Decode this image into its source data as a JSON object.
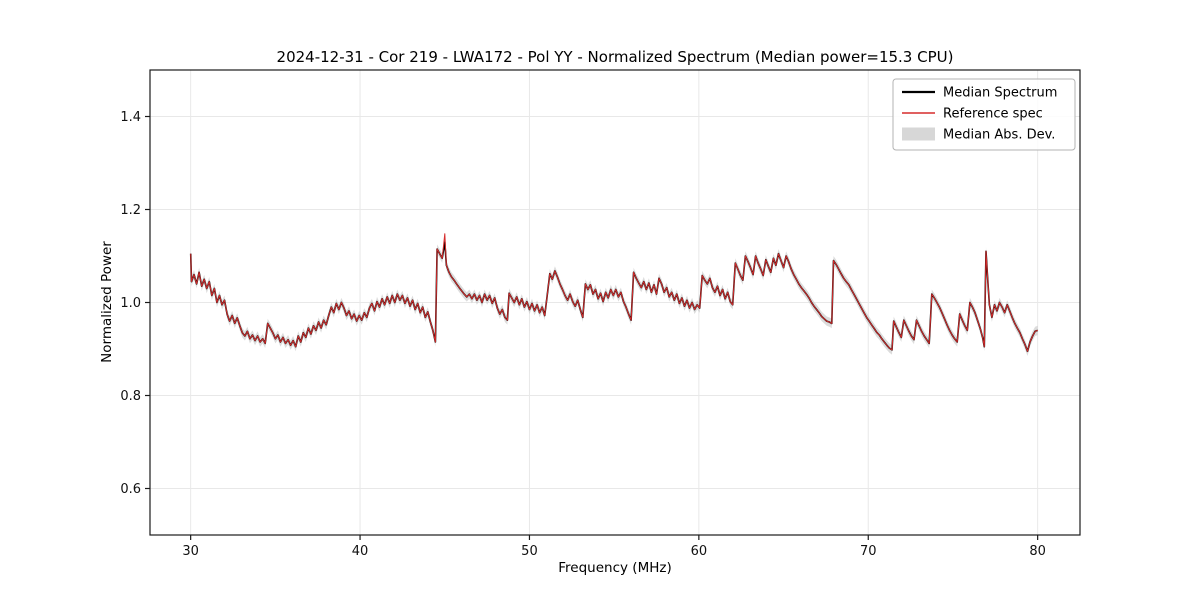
{
  "chart_data": {
    "type": "line",
    "title": "2024-12-31 - Cor 219 - LWA172 - Pol YY - Normalized Spectrum (Median power=15.3 CPU)",
    "xlabel": "Frequency (MHz)",
    "ylabel": "Normalized Power",
    "xlim": [
      27.6,
      82.5
    ],
    "ylim": [
      0.5,
      1.5
    ],
    "xticks": [
      30,
      40,
      50,
      60,
      70,
      80
    ],
    "yticks": [
      0.6,
      0.8,
      1.0,
      1.2,
      1.4
    ],
    "grid": true,
    "legend_position": "upper right",
    "colors": {
      "median_line": "#000000",
      "reference_line": "#d62c2c",
      "mad_band": "#c9c9c9",
      "grid_line": "#e8e8e8",
      "frame": "#1a1a1a"
    },
    "mad_band_halfwidth": 0.01,
    "reference_same_as_median": true,
    "reference_adjustments": [
      [
        45.0,
        1.148
      ]
    ],
    "median_points": [
      [
        30.0,
        1.105
      ],
      [
        30.05,
        1.045
      ],
      [
        30.2,
        1.06
      ],
      [
        30.35,
        1.04
      ],
      [
        30.5,
        1.065
      ],
      [
        30.65,
        1.035
      ],
      [
        30.8,
        1.05
      ],
      [
        30.95,
        1.03
      ],
      [
        31.1,
        1.045
      ],
      [
        31.25,
        1.015
      ],
      [
        31.4,
        1.03
      ],
      [
        31.55,
        1.0
      ],
      [
        31.7,
        1.015
      ],
      [
        31.85,
        0.995
      ],
      [
        32.0,
        1.005
      ],
      [
        32.15,
        0.975
      ],
      [
        32.3,
        0.96
      ],
      [
        32.45,
        0.972
      ],
      [
        32.6,
        0.955
      ],
      [
        32.75,
        0.967
      ],
      [
        32.9,
        0.95
      ],
      [
        33.05,
        0.935
      ],
      [
        33.2,
        0.928
      ],
      [
        33.35,
        0.938
      ],
      [
        33.5,
        0.922
      ],
      [
        33.65,
        0.93
      ],
      [
        33.8,
        0.918
      ],
      [
        33.95,
        0.928
      ],
      [
        34.1,
        0.915
      ],
      [
        34.25,
        0.922
      ],
      [
        34.4,
        0.912
      ],
      [
        34.55,
        0.955
      ],
      [
        34.7,
        0.945
      ],
      [
        34.85,
        0.935
      ],
      [
        35.0,
        0.922
      ],
      [
        35.15,
        0.93
      ],
      [
        35.3,
        0.915
      ],
      [
        35.45,
        0.925
      ],
      [
        35.6,
        0.912
      ],
      [
        35.75,
        0.92
      ],
      [
        35.9,
        0.908
      ],
      [
        36.05,
        0.918
      ],
      [
        36.2,
        0.905
      ],
      [
        36.35,
        0.928
      ],
      [
        36.5,
        0.915
      ],
      [
        36.65,
        0.935
      ],
      [
        36.8,
        0.925
      ],
      [
        36.95,
        0.945
      ],
      [
        37.1,
        0.932
      ],
      [
        37.25,
        0.95
      ],
      [
        37.4,
        0.94
      ],
      [
        37.55,
        0.958
      ],
      [
        37.7,
        0.945
      ],
      [
        37.85,
        0.962
      ],
      [
        38.0,
        0.952
      ],
      [
        38.15,
        0.972
      ],
      [
        38.3,
        0.99
      ],
      [
        38.45,
        0.978
      ],
      [
        38.6,
        0.998
      ],
      [
        38.75,
        0.985
      ],
      [
        38.9,
        1.0
      ],
      [
        39.05,
        0.988
      ],
      [
        39.2,
        0.972
      ],
      [
        39.35,
        0.982
      ],
      [
        39.5,
        0.965
      ],
      [
        39.65,
        0.975
      ],
      [
        39.8,
        0.96
      ],
      [
        39.95,
        0.972
      ],
      [
        40.1,
        0.962
      ],
      [
        40.25,
        0.978
      ],
      [
        40.4,
        0.968
      ],
      [
        40.55,
        0.988
      ],
      [
        40.7,
        0.998
      ],
      [
        40.85,
        0.982
      ],
      [
        41.0,
        1.002
      ],
      [
        41.15,
        0.99
      ],
      [
        41.3,
        1.008
      ],
      [
        41.45,
        0.995
      ],
      [
        41.6,
        1.012
      ],
      [
        41.75,
        0.998
      ],
      [
        41.9,
        1.015
      ],
      [
        42.05,
        1.0
      ],
      [
        42.2,
        1.018
      ],
      [
        42.35,
        1.005
      ],
      [
        42.5,
        1.015
      ],
      [
        42.65,
        0.998
      ],
      [
        42.8,
        1.01
      ],
      [
        42.95,
        0.992
      ],
      [
        43.1,
        1.005
      ],
      [
        43.25,
        0.985
      ],
      [
        43.4,
        0.998
      ],
      [
        43.55,
        0.978
      ],
      [
        43.7,
        0.99
      ],
      [
        43.85,
        0.968
      ],
      [
        44.0,
        0.98
      ],
      [
        44.15,
        0.958
      ],
      [
        44.3,
        0.94
      ],
      [
        44.45,
        0.915
      ],
      [
        44.55,
        1.115
      ],
      [
        44.7,
        1.105
      ],
      [
        44.85,
        1.095
      ],
      [
        45.0,
        1.13
      ],
      [
        45.1,
        1.08
      ],
      [
        45.25,
        1.065
      ],
      [
        45.4,
        1.055
      ],
      [
        45.55,
        1.048
      ],
      [
        45.7,
        1.04
      ],
      [
        45.85,
        1.032
      ],
      [
        46.0,
        1.025
      ],
      [
        46.15,
        1.018
      ],
      [
        46.3,
        1.012
      ],
      [
        46.45,
        1.018
      ],
      [
        46.6,
        1.008
      ],
      [
        46.75,
        1.018
      ],
      [
        46.9,
        1.005
      ],
      [
        47.05,
        1.015
      ],
      [
        47.2,
        1.0
      ],
      [
        47.35,
        1.018
      ],
      [
        47.5,
        1.005
      ],
      [
        47.65,
        1.015
      ],
      [
        47.8,
        0.998
      ],
      [
        47.95,
        1.01
      ],
      [
        48.1,
        0.988
      ],
      [
        48.25,
        0.975
      ],
      [
        48.4,
        0.985
      ],
      [
        48.55,
        0.968
      ],
      [
        48.7,
        0.962
      ],
      [
        48.8,
        1.02
      ],
      [
        48.95,
        1.01
      ],
      [
        49.1,
        1.0
      ],
      [
        49.25,
        1.012
      ],
      [
        49.4,
        0.995
      ],
      [
        49.55,
        1.008
      ],
      [
        49.7,
        0.99
      ],
      [
        49.85,
        1.002
      ],
      [
        50.0,
        0.985
      ],
      [
        50.15,
        0.998
      ],
      [
        50.3,
        0.982
      ],
      [
        50.45,
        0.995
      ],
      [
        50.6,
        0.978
      ],
      [
        50.75,
        0.99
      ],
      [
        50.9,
        0.972
      ],
      [
        51.05,
        1.015
      ],
      [
        51.2,
        1.062
      ],
      [
        51.35,
        1.05
      ],
      [
        51.5,
        1.068
      ],
      [
        51.65,
        1.055
      ],
      [
        51.8,
        1.04
      ],
      [
        51.95,
        1.028
      ],
      [
        52.1,
        1.015
      ],
      [
        52.25,
        1.005
      ],
      [
        52.4,
        1.018
      ],
      [
        52.55,
        1.002
      ],
      [
        52.7,
        0.992
      ],
      [
        52.85,
        1.005
      ],
      [
        53.0,
        0.985
      ],
      [
        53.15,
        0.968
      ],
      [
        53.3,
        1.04
      ],
      [
        53.45,
        1.028
      ],
      [
        53.6,
        1.038
      ],
      [
        53.75,
        1.018
      ],
      [
        53.9,
        1.028
      ],
      [
        54.05,
        1.008
      ],
      [
        54.2,
        1.02
      ],
      [
        54.35,
        1.002
      ],
      [
        54.5,
        1.022
      ],
      [
        54.65,
        1.01
      ],
      [
        54.8,
        1.028
      ],
      [
        54.95,
        1.015
      ],
      [
        55.1,
        1.028
      ],
      [
        55.25,
        1.012
      ],
      [
        55.4,
        1.022
      ],
      [
        55.55,
        1.002
      ],
      [
        55.7,
        0.99
      ],
      [
        55.85,
        0.975
      ],
      [
        56.0,
        0.962
      ],
      [
        56.15,
        1.065
      ],
      [
        56.3,
        1.052
      ],
      [
        56.45,
        1.042
      ],
      [
        56.6,
        1.032
      ],
      [
        56.75,
        1.045
      ],
      [
        56.9,
        1.028
      ],
      [
        57.05,
        1.042
      ],
      [
        57.2,
        1.022
      ],
      [
        57.35,
        1.038
      ],
      [
        57.5,
        1.018
      ],
      [
        57.65,
        1.052
      ],
      [
        57.8,
        1.04
      ],
      [
        57.95,
        1.022
      ],
      [
        58.1,
        1.032
      ],
      [
        58.25,
        1.012
      ],
      [
        58.4,
        1.022
      ],
      [
        58.55,
        1.005
      ],
      [
        58.7,
        1.018
      ],
      [
        58.85,
        0.998
      ],
      [
        59.0,
        1.01
      ],
      [
        59.15,
        0.992
      ],
      [
        59.3,
        1.005
      ],
      [
        59.45,
        0.988
      ],
      [
        59.6,
        1.0
      ],
      [
        59.75,
        0.985
      ],
      [
        59.9,
        0.995
      ],
      [
        60.05,
        0.988
      ],
      [
        60.2,
        1.058
      ],
      [
        60.35,
        1.048
      ],
      [
        60.5,
        1.04
      ],
      [
        60.65,
        1.052
      ],
      [
        60.8,
        1.032
      ],
      [
        60.95,
        1.022
      ],
      [
        61.1,
        1.035
      ],
      [
        61.25,
        1.015
      ],
      [
        61.4,
        1.028
      ],
      [
        61.55,
        1.008
      ],
      [
        61.7,
        1.022
      ],
      [
        61.85,
        1.002
      ],
      [
        62.0,
        0.995
      ],
      [
        62.15,
        1.085
      ],
      [
        62.3,
        1.072
      ],
      [
        62.45,
        1.058
      ],
      [
        62.6,
        1.048
      ],
      [
        62.75,
        1.1
      ],
      [
        62.9,
        1.088
      ],
      [
        63.05,
        1.075
      ],
      [
        63.2,
        1.06
      ],
      [
        63.35,
        1.1
      ],
      [
        63.5,
        1.085
      ],
      [
        63.65,
        1.072
      ],
      [
        63.8,
        1.058
      ],
      [
        63.95,
        1.092
      ],
      [
        64.1,
        1.078
      ],
      [
        64.25,
        1.065
      ],
      [
        64.4,
        1.095
      ],
      [
        64.55,
        1.08
      ],
      [
        64.7,
        1.105
      ],
      [
        64.85,
        1.09
      ],
      [
        65.0,
        1.075
      ],
      [
        65.15,
        1.1
      ],
      [
        65.3,
        1.088
      ],
      [
        65.45,
        1.072
      ],
      [
        65.6,
        1.06
      ],
      [
        65.75,
        1.05
      ],
      [
        65.9,
        1.04
      ],
      [
        66.05,
        1.032
      ],
      [
        66.2,
        1.025
      ],
      [
        66.35,
        1.018
      ],
      [
        66.5,
        1.01
      ],
      [
        66.65,
        1.0
      ],
      [
        66.8,
        0.992
      ],
      [
        66.95,
        0.985
      ],
      [
        67.1,
        0.978
      ],
      [
        67.25,
        0.97
      ],
      [
        67.4,
        0.965
      ],
      [
        67.55,
        0.96
      ],
      [
        67.7,
        0.958
      ],
      [
        67.85,
        0.955
      ],
      [
        67.95,
        1.09
      ],
      [
        68.1,
        1.082
      ],
      [
        68.25,
        1.072
      ],
      [
        68.4,
        1.062
      ],
      [
        68.55,
        1.052
      ],
      [
        68.7,
        1.045
      ],
      [
        68.85,
        1.038
      ],
      [
        69.0,
        1.028
      ],
      [
        69.15,
        1.018
      ],
      [
        69.3,
        1.008
      ],
      [
        69.45,
        0.998
      ],
      [
        69.6,
        0.988
      ],
      [
        69.75,
        0.978
      ],
      [
        69.9,
        0.968
      ],
      [
        70.05,
        0.96
      ],
      [
        70.2,
        0.952
      ],
      [
        70.35,
        0.944
      ],
      [
        70.5,
        0.936
      ],
      [
        70.65,
        0.93
      ],
      [
        70.8,
        0.922
      ],
      [
        70.95,
        0.915
      ],
      [
        71.1,
        0.908
      ],
      [
        71.25,
        0.902
      ],
      [
        71.4,
        0.898
      ],
      [
        71.5,
        0.96
      ],
      [
        71.65,
        0.948
      ],
      [
        71.8,
        0.936
      ],
      [
        71.95,
        0.925
      ],
      [
        72.1,
        0.962
      ],
      [
        72.25,
        0.95
      ],
      [
        72.4,
        0.938
      ],
      [
        72.55,
        0.928
      ],
      [
        72.7,
        0.92
      ],
      [
        72.85,
        0.962
      ],
      [
        73.0,
        0.95
      ],
      [
        73.15,
        0.938
      ],
      [
        73.3,
        0.928
      ],
      [
        73.45,
        0.92
      ],
      [
        73.6,
        0.912
      ],
      [
        73.75,
        1.018
      ],
      [
        73.9,
        1.01
      ],
      [
        74.05,
        1.0
      ],
      [
        74.2,
        0.99
      ],
      [
        74.35,
        0.978
      ],
      [
        74.5,
        0.965
      ],
      [
        74.65,
        0.952
      ],
      [
        74.8,
        0.94
      ],
      [
        74.95,
        0.93
      ],
      [
        75.1,
        0.922
      ],
      [
        75.25,
        0.915
      ],
      [
        75.4,
        0.975
      ],
      [
        75.55,
        0.962
      ],
      [
        75.7,
        0.95
      ],
      [
        75.85,
        0.94
      ],
      [
        76.0,
        1.0
      ],
      [
        76.15,
        0.99
      ],
      [
        76.3,
        0.978
      ],
      [
        76.45,
        0.962
      ],
      [
        76.6,
        0.945
      ],
      [
        76.75,
        0.925
      ],
      [
        76.85,
        0.905
      ],
      [
        76.95,
        1.11
      ],
      [
        77.05,
        1.05
      ],
      [
        77.15,
        0.995
      ],
      [
        77.3,
        0.968
      ],
      [
        77.45,
        0.995
      ],
      [
        77.6,
        0.982
      ],
      [
        77.75,
        1.0
      ],
      [
        77.9,
        0.99
      ],
      [
        78.05,
        0.978
      ],
      [
        78.2,
        0.995
      ],
      [
        78.35,
        0.982
      ],
      [
        78.5,
        0.968
      ],
      [
        78.65,
        0.955
      ],
      [
        78.8,
        0.945
      ],
      [
        78.95,
        0.935
      ],
      [
        79.1,
        0.922
      ],
      [
        79.25,
        0.91
      ],
      [
        79.4,
        0.895
      ],
      [
        79.55,
        0.915
      ],
      [
        79.7,
        0.928
      ],
      [
        79.85,
        0.938
      ],
      [
        80.0,
        0.94
      ]
    ]
  },
  "legend": {
    "items": [
      {
        "label": "Median Spectrum",
        "type": "line",
        "color": "#000000"
      },
      {
        "label": "Reference spec",
        "type": "line",
        "color": "#d62c2c"
      },
      {
        "label": "Median Abs. Dev.",
        "type": "patch",
        "color": "#c9c9c9"
      }
    ]
  }
}
